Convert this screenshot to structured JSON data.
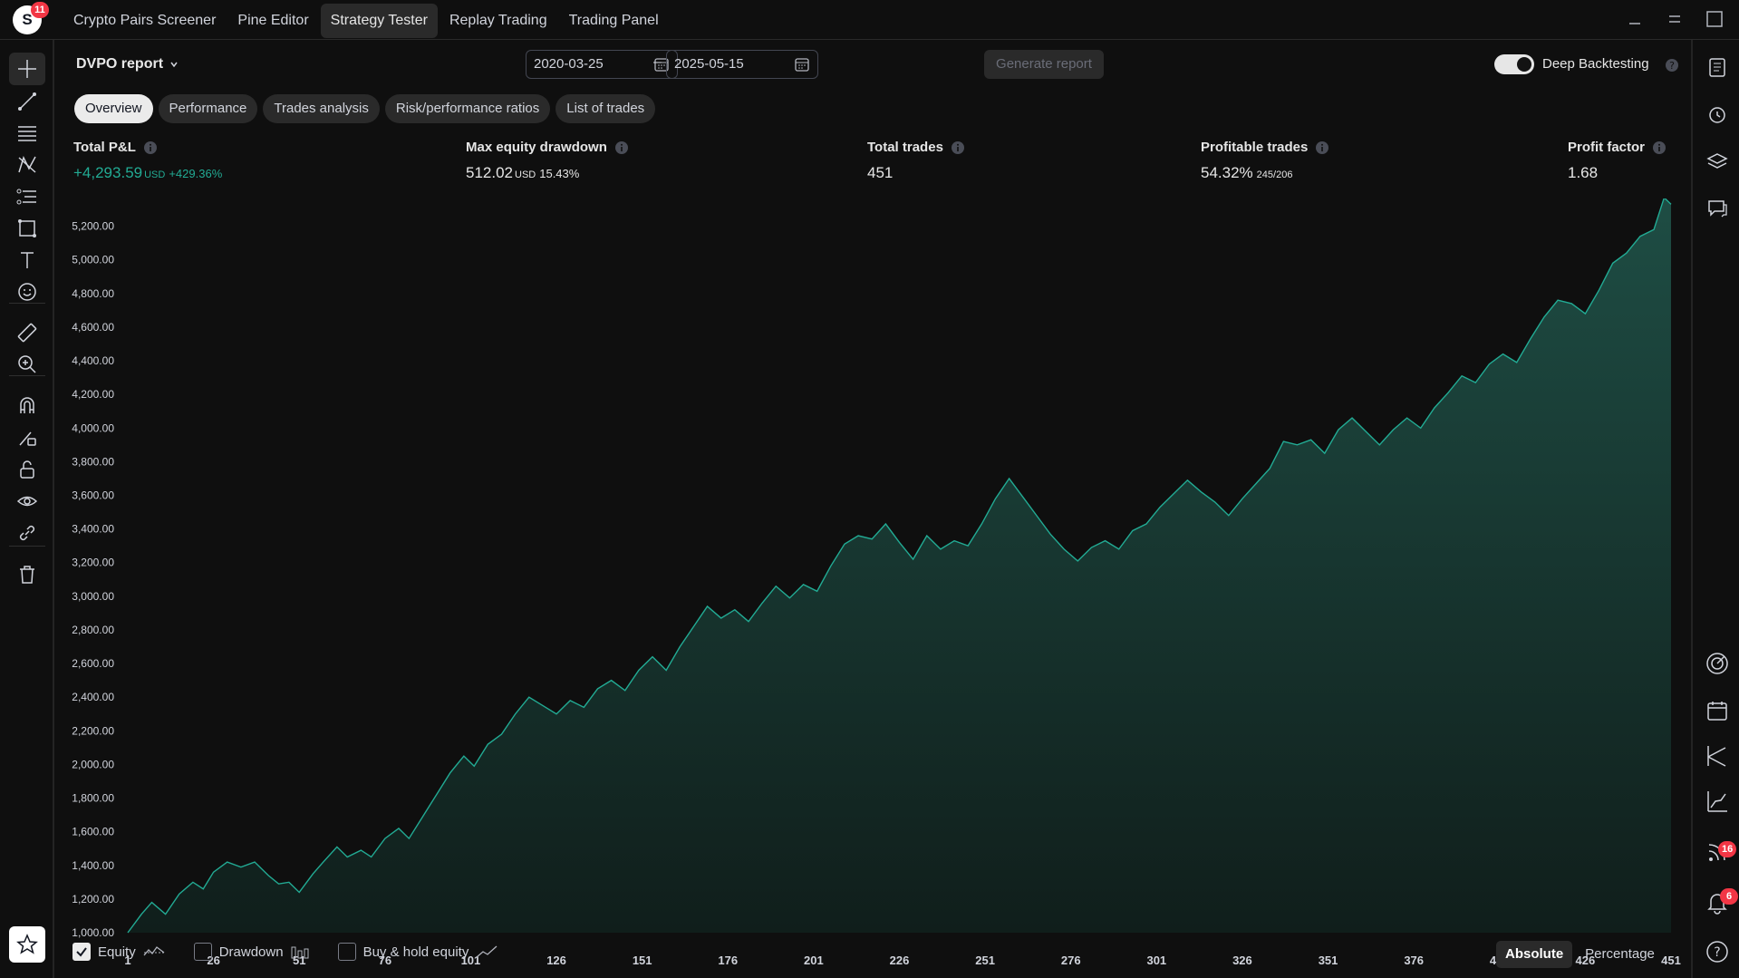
{
  "app": {
    "logo_letter": "S",
    "logo_badge": "11",
    "tabs": [
      {
        "label": "Crypto Pairs Screener"
      },
      {
        "label": "Pine Editor"
      },
      {
        "label": "Strategy Tester"
      },
      {
        "label": "Replay Trading"
      },
      {
        "label": "Trading Panel"
      }
    ],
    "active_tab_index": 2
  },
  "report": {
    "title": "DVPO report",
    "date_from": "2020-03-25",
    "date_separator": "–",
    "date_to": "2025-05-15",
    "generate_label": "Generate report",
    "deep_backtesting_label": "Deep Backtesting",
    "deep_backtesting_on": true
  },
  "subtabs": [
    {
      "label": "Overview"
    },
    {
      "label": "Performance"
    },
    {
      "label": "Trades analysis"
    },
    {
      "label": "Risk/performance ratios"
    },
    {
      "label": "List of trades"
    }
  ],
  "metrics": {
    "pnl": {
      "label": "Total P&L",
      "value": "+4,293.59",
      "unit": "USD",
      "sub": "+429.36%"
    },
    "drawdown": {
      "label": "Max equity drawdown",
      "value": "512.02",
      "unit": "USD",
      "sub": "15.43%"
    },
    "trades": {
      "label": "Total trades",
      "value": "451"
    },
    "profitable": {
      "label": "Profitable trades",
      "value": "54.32%",
      "sub": "245/206"
    },
    "factor": {
      "label": "Profit factor",
      "value": "1.68"
    }
  },
  "chart_data": {
    "type": "area",
    "xlim": [
      1,
      451
    ],
    "ylim": [
      1000,
      5300
    ],
    "x_ticks": [
      "1",
      "26",
      "51",
      "76",
      "101",
      "126",
      "151",
      "176",
      "201",
      "226",
      "251",
      "276",
      "301",
      "326",
      "351",
      "376",
      "401",
      "426",
      "451"
    ],
    "y_ticks": [
      "1,000.00",
      "1,200.00",
      "1,400.00",
      "1,600.00",
      "1,800.00",
      "2,000.00",
      "2,200.00",
      "2,400.00",
      "2,600.00",
      "2,800.00",
      "3,000.00",
      "3,200.00",
      "3,400.00",
      "3,600.00",
      "3,800.00",
      "4,000.00",
      "4,200.00",
      "4,400.00",
      "4,600.00",
      "4,800.00",
      "5,000.00",
      "5,200.00"
    ],
    "series": [
      {
        "name": "Equity",
        "color": "#22ab94",
        "points": [
          [
            1,
            1000
          ],
          [
            5,
            1110
          ],
          [
            8,
            1180
          ],
          [
            12,
            1110
          ],
          [
            16,
            1230
          ],
          [
            20,
            1300
          ],
          [
            23,
            1260
          ],
          [
            26,
            1360
          ],
          [
            30,
            1420
          ],
          [
            34,
            1390
          ],
          [
            38,
            1420
          ],
          [
            42,
            1340
          ],
          [
            45,
            1290
          ],
          [
            48,
            1300
          ],
          [
            51,
            1240
          ],
          [
            55,
            1350
          ],
          [
            58,
            1420
          ],
          [
            62,
            1510
          ],
          [
            65,
            1450
          ],
          [
            69,
            1490
          ],
          [
            72,
            1450
          ],
          [
            76,
            1560
          ],
          [
            80,
            1620
          ],
          [
            83,
            1560
          ],
          [
            87,
            1690
          ],
          [
            91,
            1820
          ],
          [
            95,
            1950
          ],
          [
            99,
            2050
          ],
          [
            102,
            1990
          ],
          [
            106,
            2120
          ],
          [
            110,
            2180
          ],
          [
            114,
            2300
          ],
          [
            118,
            2400
          ],
          [
            122,
            2350
          ],
          [
            126,
            2300
          ],
          [
            130,
            2380
          ],
          [
            134,
            2340
          ],
          [
            138,
            2450
          ],
          [
            142,
            2500
          ],
          [
            146,
            2440
          ],
          [
            150,
            2560
          ],
          [
            154,
            2640
          ],
          [
            158,
            2560
          ],
          [
            162,
            2700
          ],
          [
            166,
            2820
          ],
          [
            170,
            2940
          ],
          [
            174,
            2870
          ],
          [
            178,
            2920
          ],
          [
            182,
            2850
          ],
          [
            186,
            2960
          ],
          [
            190,
            3060
          ],
          [
            194,
            2990
          ],
          [
            198,
            3070
          ],
          [
            202,
            3030
          ],
          [
            206,
            3180
          ],
          [
            210,
            3310
          ],
          [
            214,
            3360
          ],
          [
            218,
            3340
          ],
          [
            222,
            3430
          ],
          [
            226,
            3320
          ],
          [
            230,
            3220
          ],
          [
            234,
            3360
          ],
          [
            238,
            3280
          ],
          [
            242,
            3330
          ],
          [
            246,
            3300
          ],
          [
            250,
            3430
          ],
          [
            254,
            3580
          ],
          [
            258,
            3700
          ],
          [
            262,
            3590
          ],
          [
            266,
            3480
          ],
          [
            270,
            3370
          ],
          [
            274,
            3280
          ],
          [
            278,
            3210
          ],
          [
            282,
            3290
          ],
          [
            286,
            3330
          ],
          [
            290,
            3280
          ],
          [
            294,
            3390
          ],
          [
            298,
            3430
          ],
          [
            302,
            3530
          ],
          [
            306,
            3610
          ],
          [
            310,
            3690
          ],
          [
            314,
            3620
          ],
          [
            318,
            3560
          ],
          [
            322,
            3480
          ],
          [
            326,
            3580
          ],
          [
            330,
            3670
          ],
          [
            334,
            3760
          ],
          [
            338,
            3920
          ],
          [
            342,
            3900
          ],
          [
            346,
            3930
          ],
          [
            350,
            3850
          ],
          [
            354,
            3990
          ],
          [
            358,
            4060
          ],
          [
            362,
            3980
          ],
          [
            366,
            3900
          ],
          [
            370,
            3990
          ],
          [
            374,
            4060
          ],
          [
            378,
            4000
          ],
          [
            382,
            4120
          ],
          [
            386,
            4210
          ],
          [
            390,
            4310
          ],
          [
            394,
            4270
          ],
          [
            398,
            4380
          ],
          [
            402,
            4440
          ],
          [
            406,
            4390
          ],
          [
            410,
            4530
          ],
          [
            414,
            4660
          ],
          [
            418,
            4760
          ],
          [
            422,
            4740
          ],
          [
            426,
            4680
          ],
          [
            430,
            4820
          ],
          [
            434,
            4980
          ],
          [
            438,
            5040
          ],
          [
            442,
            5140
          ],
          [
            446,
            5180
          ],
          [
            449,
            5370
          ],
          [
            451,
            5330
          ]
        ]
      }
    ],
    "legend": [
      {
        "label": "Equity",
        "checked": true
      },
      {
        "label": "Drawdown",
        "checked": false
      },
      {
        "label": "Buy & hold equity",
        "checked": false
      }
    ],
    "grid": false
  },
  "view_toggle": {
    "absolute": "Absolute",
    "percentage": "Percentage",
    "active": "absolute"
  },
  "right_badges": {
    "feed": "16",
    "notifications": "6"
  }
}
